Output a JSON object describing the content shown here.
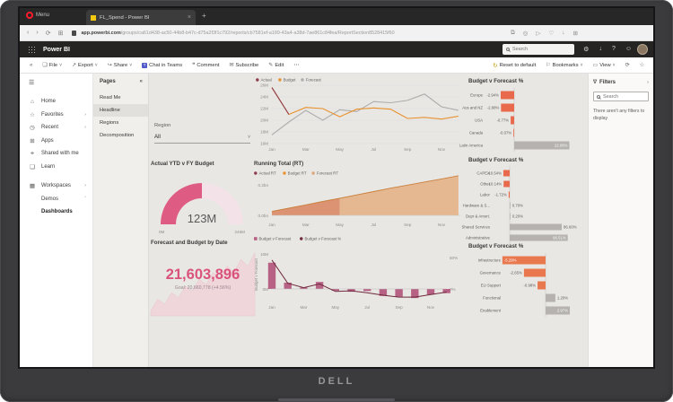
{
  "monitor": {
    "brand": "DELL"
  },
  "browser": {
    "menu_label": "Menu",
    "tab_title": "FL_Spend - Power BI",
    "close_glyph": "×",
    "new_tab_glyph": "+",
    "url_host": "app.powerbi.com",
    "url_path": "/groups/ca61d438-ac50-44b8-b47c-d75a2f3f1c792/reports/cb7581ef-a189-43a4-a38d-7ae861c84fea/ReportSection8528415f60"
  },
  "powerbi_bar": {
    "brand": "Power BI",
    "search_placeholder": "Search"
  },
  "toolbar": {
    "collapse_glyph": "«",
    "file_label": "File",
    "export_label": "Export",
    "share_label": "Share",
    "teams_label": "Chat in Teams",
    "comment_label": "Comment",
    "subscribe_label": "Subscribe",
    "edit_label": "Edit",
    "more_glyph": "⋯",
    "reset_label": "Reset to default",
    "bookmarks_label": "Bookmarks",
    "view_label": "View"
  },
  "sidebar": {
    "items": [
      {
        "label": "Home",
        "chevron": ""
      },
      {
        "label": "Favorites",
        "chevron": "›"
      },
      {
        "label": "Recent",
        "chevron": "›"
      },
      {
        "label": "Apps",
        "chevron": ""
      },
      {
        "label": "Shared with me",
        "chevron": ""
      },
      {
        "label": "Learn",
        "chevron": ""
      },
      {
        "label": "Workspaces",
        "chevron": "›"
      },
      {
        "label": "Demos",
        "chevron": "ˆ"
      },
      {
        "label": "Dashboards",
        "chevron": ""
      }
    ]
  },
  "pages_panel": {
    "title": "Pages",
    "collapse_glyph": "«",
    "items": [
      "Read Me",
      "Headline",
      "Regions",
      "Decomposition"
    ],
    "active_index": 1
  },
  "filters_panel": {
    "title": "Filters",
    "expand_glyph": "›",
    "search_placeholder": "Search",
    "empty_message": "There aren't any filters to display"
  },
  "report": {
    "slicer": {
      "label": "Region",
      "value": "All"
    }
  },
  "chart_data": [
    {
      "id": "actual-budget-forecast-trend",
      "type": "line",
      "legend": [
        {
          "name": "Actual",
          "color": "#8e3b4d"
        },
        {
          "name": "Budget",
          "color": "#e8912d"
        },
        {
          "name": "Forecast",
          "color": "#acacac"
        }
      ],
      "x_ticks": [
        "Jan",
        "Mar",
        "May",
        "Jul",
        "Sep",
        "Nov"
      ],
      "y_ticks": [
        "26M",
        "24M",
        "22M",
        "20M",
        "18M",
        "16M"
      ],
      "ylim": [
        16,
        26
      ],
      "series": [
        {
          "name": "Actual",
          "color": "#8e3b4d",
          "values": [
            25.6,
            21.0
          ]
        },
        {
          "name": "Budget",
          "color": "#e8912d",
          "values": [
            25.6,
            21.0,
            22.2,
            22.0,
            20.6,
            21.9,
            22.1,
            21.9,
            20.3,
            20.5,
            20.2,
            20.7
          ]
        },
        {
          "name": "Forecast",
          "color": "#acacac",
          "values": [
            17.5,
            19.7,
            21.7,
            20.0,
            21.8,
            21.5,
            23.2,
            23.0,
            23.4,
            24.5,
            22.3,
            21.7
          ]
        }
      ]
    },
    {
      "id": "budget-v-forecast-pct-by-region",
      "type": "bar",
      "title": "Budget v Forecast %",
      "negative_color": "#e8694c",
      "positive_color": "#b5b2af",
      "rows": [
        {
          "label": "Europe",
          "value": -2.94,
          "text": "-2.94%"
        },
        {
          "label": "Aus and NZ",
          "value": -2.88,
          "text": "-2.88%"
        },
        {
          "label": "USA",
          "value": -0.77,
          "text": "-0.77%"
        },
        {
          "label": "Canada",
          "value": -0.07,
          "text": "-0.07%"
        },
        {
          "label": "Latin America",
          "value": 12.06,
          "text": "12.06%",
          "inside": true
        }
      ]
    },
    {
      "id": "actual-ytd-v-fy-budget-gauge",
      "type": "gauge",
      "title": "Actual YTD v FY Budget",
      "value": "123M",
      "min": "0M",
      "max": "246M",
      "fraction": 0.5,
      "color": "#de5b83",
      "track_color": "#f3e2e8"
    },
    {
      "id": "running-total",
      "type": "area",
      "title": "Running Total (RT)",
      "legend": [
        {
          "name": "Actual RT",
          "color": "#8e3b4d"
        },
        {
          "name": "Budget RT",
          "color": "#e8912d"
        },
        {
          "name": "Forecast RT",
          "color": "#dda878"
        }
      ],
      "x_ticks": [
        "Jan",
        "Mar",
        "May",
        "Jul",
        "Sep",
        "Nov"
      ],
      "y_ticks": [
        "0.2bn",
        "0.0bn"
      ],
      "values": [
        0.026,
        0.047,
        0.069,
        0.091,
        0.112,
        0.134,
        0.156,
        0.178,
        0.198,
        0.219,
        0.239,
        0.26
      ],
      "actual_split_index": 4,
      "actual_color": "#d98a66",
      "forecast_color": "#e5b58c",
      "edge_color": "#c9803d"
    },
    {
      "id": "budget-v-forecast-pct-by-category",
      "type": "bar",
      "title": "Budget v Forecast %",
      "negative_color": "#e8694c",
      "positive_color": "#b5b2af",
      "rows": [
        {
          "label": "CAPEX",
          "value": -10.54,
          "text": "-10.54%"
        },
        {
          "label": "Other",
          "value": -10.14,
          "text": "-10.14%"
        },
        {
          "label": "Labor",
          "value": -1.72,
          "text": "-1.72%"
        },
        {
          "label": "Hardware & S...",
          "value": 0.7,
          "text": "0.70%"
        },
        {
          "label": "Depr & Amort.",
          "value": 0.2,
          "text": "0.20%"
        },
        {
          "label": "Shared Services",
          "value": 86.6,
          "text": "86.60%"
        },
        {
          "label": "Administrative",
          "value": 96.51,
          "text": "96.51%",
          "inside": true
        }
      ]
    },
    {
      "id": "forecast-and-budget-by-date",
      "type": "kpi",
      "title": "Forecast and Budget by Date",
      "value": "21,603,896",
      "goal": "Goal: 20,660,778 (+4.56%)",
      "value_color": "#d9537a",
      "spark": [
        3,
        10,
        7,
        14,
        11,
        18,
        15,
        22,
        19,
        26,
        23,
        30,
        26,
        34,
        30,
        38
      ]
    },
    {
      "id": "budget-v-forecast-combo",
      "type": "bar+line",
      "legend": [
        {
          "name": "Budget v Forecast",
          "color": "#b76284",
          "shape": "bar"
        },
        {
          "name": "Budget v Forecast %",
          "color": "#6e2a3c",
          "shape": "line"
        }
      ],
      "ylabel": "Budget v Forecast",
      "y_left_ticks": [
        "10M",
        "0M"
      ],
      "y_right_ticks": [
        "50%",
        "0%"
      ],
      "x_ticks": [
        "Jan",
        "Mar",
        "May",
        "Jul",
        "Sep",
        "Nov"
      ],
      "bars": [
        7.5,
        1.8,
        0.4,
        2.0,
        -0.5,
        -0.8,
        -0.6,
        -2.0,
        -2.2,
        -2.6,
        -1.6,
        -1.2
      ],
      "line": [
        46,
        9,
        2,
        8,
        -4,
        -3,
        -6,
        -10,
        -13,
        -13,
        -9,
        -5
      ]
    },
    {
      "id": "budget-v-forecast-pct-by-program",
      "type": "bar",
      "title": "Budget v Forecast %",
      "negative_color": "#e9784f",
      "positive_color": "#b5b2af",
      "rows": [
        {
          "label": "Infrastructure",
          "value": -5.29,
          "text": "-5.29%",
          "inside": true
        },
        {
          "label": "Governance",
          "value": -2.65,
          "text": "-2.65%"
        },
        {
          "label": "EU Support",
          "value": -0.98,
          "text": "-0.98%"
        },
        {
          "label": "Functional",
          "value": 1.2,
          "text": "1.20%"
        },
        {
          "label": "Enablement",
          "value": 2.97,
          "text": "2.97%",
          "inside": true
        }
      ]
    }
  ]
}
